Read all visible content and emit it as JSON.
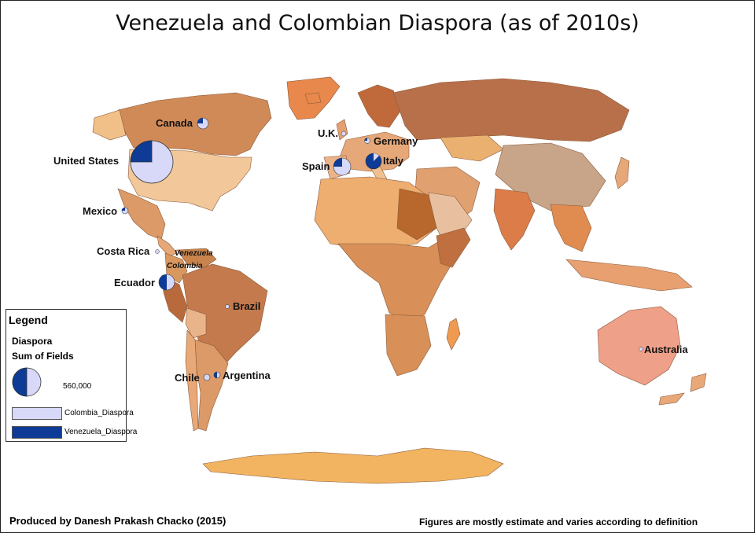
{
  "title": "Venezuela and Colombian Diaspora (as of 2010s)",
  "legend": {
    "heading": "Legend",
    "layer": "Diaspora",
    "field": "Sum of Fields",
    "size_value": "560,000",
    "items": [
      {
        "label": "Colombia_Diaspora",
        "color": "#d8d8f8"
      },
      {
        "label": "Venezuela_Diaspora",
        "color": "#0d3b96"
      }
    ]
  },
  "places": {
    "canada": "Canada",
    "united_states": "United States",
    "mexico": "Mexico",
    "costa_rica": "Costa Rica",
    "venezuela": "Venezuela",
    "colombia": "Colombia",
    "ecuador": "Ecuador",
    "brazil": "Brazil",
    "chile": "Chile",
    "argentina": "Argentina",
    "uk": "U.K.",
    "germany": "Germany",
    "spain": "Spain",
    "italy": "Italy",
    "australia": "Australia"
  },
  "footer": {
    "credit": "Produced by Danesh Prakash Chacko (2015)",
    "note": "Figures are mostly estimate and varies according to definition"
  },
  "colors": {
    "colombia": "#d8d8f8",
    "venezuela": "#0d3b96",
    "ocean": "#ffffff",
    "land_light": "#f0c088",
    "land_dark": "#b86a3c",
    "antarctica": "#f2b460"
  }
}
